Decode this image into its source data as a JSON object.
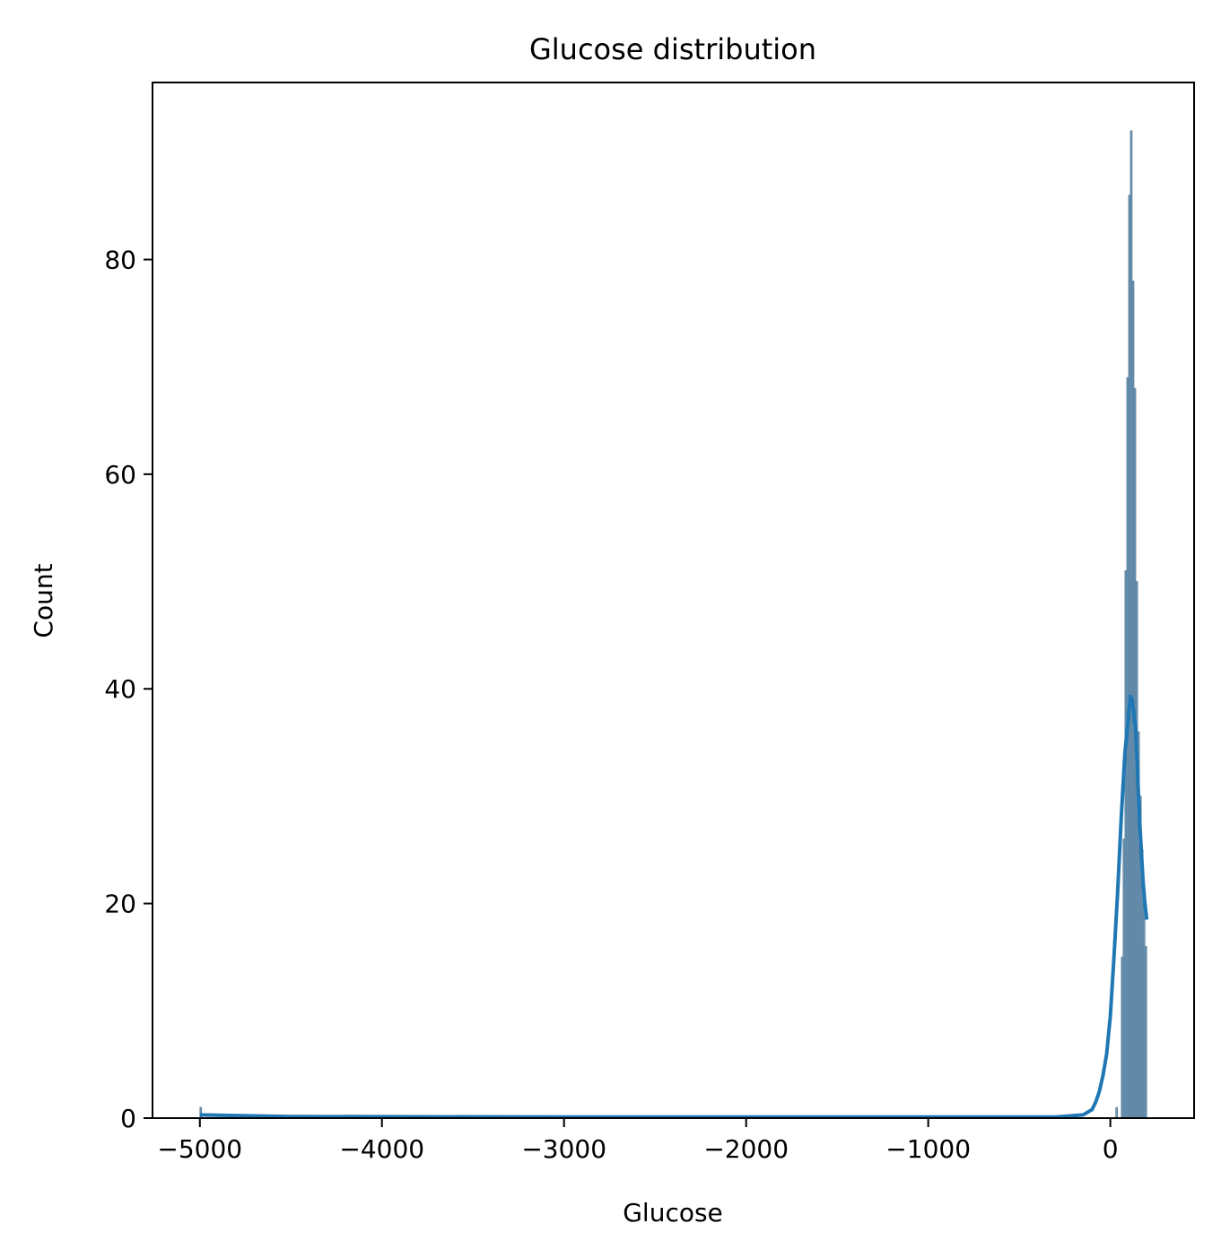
{
  "chart_data": {
    "type": "bar",
    "title": "Glucose distribution",
    "xlabel": "Glucose",
    "ylabel": "Count",
    "xlim": [
      -5260,
      460
    ],
    "ylim": [
      0,
      96.5
    ],
    "xticks": [
      -5000,
      -4000,
      -3000,
      -2000,
      -1000,
      0
    ],
    "xtick_labels": [
      "−5000",
      "−4000",
      "−3000",
      "−2000",
      "−1000",
      "0"
    ],
    "yticks": [
      0,
      20,
      40,
      60,
      80
    ],
    "ytick_labels": [
      "0",
      "20",
      "40",
      "60",
      "80"
    ],
    "grid": false,
    "histogram": {
      "bin_width": 10,
      "bins": [
        {
          "x": -5000,
          "count": 1
        },
        {
          "x": 30,
          "count": 1
        },
        {
          "x": 60,
          "count": 15
        },
        {
          "x": 70,
          "count": 26
        },
        {
          "x": 80,
          "count": 51
        },
        {
          "x": 90,
          "count": 69
        },
        {
          "x": 100,
          "count": 86
        },
        {
          "x": 110,
          "count": 92
        },
        {
          "x": 120,
          "count": 78
        },
        {
          "x": 130,
          "count": 68
        },
        {
          "x": 140,
          "count": 50
        },
        {
          "x": 150,
          "count": 36
        },
        {
          "x": 160,
          "count": 30
        },
        {
          "x": 170,
          "count": 25
        },
        {
          "x": 180,
          "count": 20
        },
        {
          "x": 190,
          "count": 16
        }
      ]
    },
    "kde": {
      "x": [
        -5000,
        -4500,
        -3000,
        -1000,
        -300,
        -150,
        -100,
        -80,
        -60,
        -40,
        -20,
        0,
        20,
        40,
        60,
        80,
        100,
        110,
        120,
        130,
        140,
        150,
        160,
        170,
        180,
        190,
        200
      ],
      "y": [
        0.3,
        0.15,
        0.1,
        0.1,
        0.1,
        0.3,
        0.8,
        1.5,
        2.5,
        4.0,
        6.0,
        9.5,
        15,
        21,
        28,
        34,
        37.5,
        39.3,
        39.0,
        37.5,
        36,
        32,
        28,
        25,
        22,
        20,
        18.5
      ]
    },
    "colors": {
      "bars": "#6f98b8",
      "bar_edge": "#4a6f8a",
      "kde": "#1f77b4"
    }
  }
}
